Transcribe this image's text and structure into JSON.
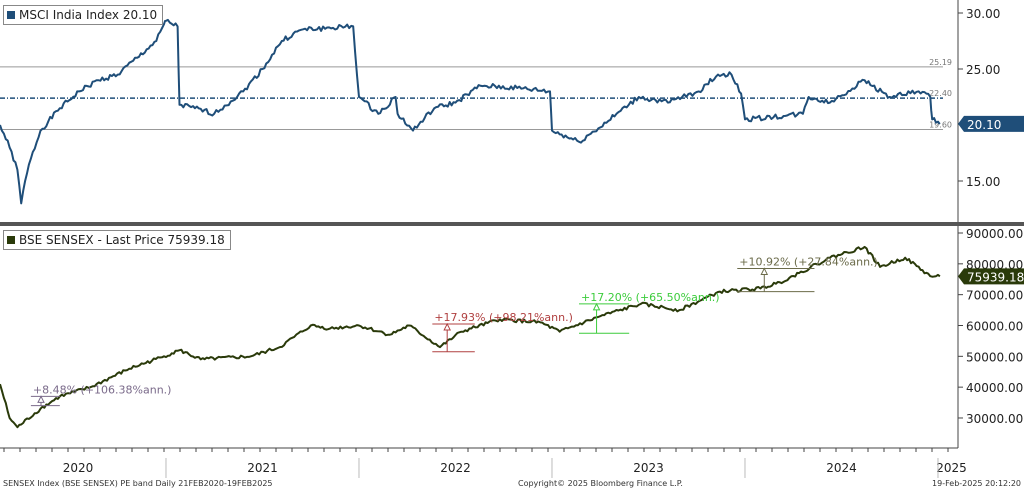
{
  "chart_data": [
    {
      "type": "line",
      "title": "MSCI India Index 20.10",
      "legend": "MSCI India Index 20.10",
      "last_value_label": "20.10",
      "color": "#1f4e79",
      "yticks": [
        "30.00",
        "25.00",
        "15.00"
      ],
      "ytick_values": [
        30,
        25,
        15
      ],
      "ylim": [
        11,
        31
      ],
      "bands": [
        {
          "label": "25.19",
          "value": 25.19
        },
        {
          "label": "22.40",
          "value": 22.4,
          "dashed": true
        },
        {
          "label": "19.60",
          "value": 19.6
        }
      ],
      "x": [
        2020.14,
        2020.19,
        2020.23,
        2020.25,
        2020.27,
        2020.3,
        2020.35,
        2020.45,
        2020.55,
        2020.65,
        2020.75,
        2020.85,
        2020.95,
        2020.99,
        2021.0,
        2021.06,
        2021.07,
        2021.15,
        2021.25,
        2021.4,
        2021.5,
        2021.6,
        2021.7,
        2021.97,
        2022.0,
        2022.1,
        2022.19,
        2022.2,
        2022.28,
        2022.39,
        2022.5,
        2022.63,
        2022.82,
        2022.99,
        2023.0,
        2023.14,
        2023.24,
        2023.45,
        2023.6,
        2023.76,
        2023.86,
        2023.93,
        2023.98,
        2024.0,
        2024.2,
        2024.3,
        2024.33,
        2024.44,
        2024.62,
        2024.75,
        2024.9,
        2024.96,
        2024.97,
        2025.0,
        2025.01
      ],
      "y": [
        20,
        18,
        16,
        13,
        15,
        17,
        19.5,
        21.5,
        23,
        24,
        24.5,
        26,
        27.5,
        29,
        29.3,
        28.8,
        21.8,
        21.5,
        21,
        23,
        25,
        27.5,
        28.5,
        28.8,
        22.5,
        21,
        22.5,
        21,
        19.5,
        21.5,
        22,
        23.5,
        23.3,
        23,
        19.5,
        18.5,
        19.7,
        22.5,
        22,
        23,
        24.5,
        24.5,
        22.8,
        20.5,
        20.8,
        21,
        22.5,
        22,
        24,
        22.5,
        23,
        22.5,
        20.5,
        20.3,
        20.1
      ]
    },
    {
      "type": "line",
      "title": "BSE SENSEX - Last Price 75939.18",
      "legend": "BSE SENSEX - Last Price 75939.18",
      "last_value_label": "75939.18",
      "color": "#2a3a0a",
      "yticks": [
        "90000.00",
        "80000.00",
        "70000.00",
        "60000.00",
        "50000.00",
        "40000.00",
        "30000.00"
      ],
      "ytick_values": [
        90000,
        80000,
        70000,
        60000,
        50000,
        40000,
        30000
      ],
      "ylim": [
        20000,
        92000
      ],
      "x": [
        2020.14,
        2020.19,
        2020.23,
        2020.35,
        2020.45,
        2020.61,
        2020.81,
        2020.99,
        2021.07,
        2021.18,
        2021.44,
        2021.59,
        2021.75,
        2021.85,
        2022.0,
        2022.16,
        2022.26,
        2022.42,
        2022.53,
        2022.73,
        2022.94,
        2023.04,
        2023.25,
        2023.46,
        2023.66,
        2023.87,
        2024.08,
        2024.18,
        2024.28,
        2024.44,
        2024.62,
        2024.7,
        2024.83,
        2024.96,
        2025.01
      ],
      "y": [
        41000,
        30000,
        27000,
        33000,
        37000,
        40000,
        46000,
        50000,
        52000,
        49000,
        50000,
        53000,
        60000,
        59000,
        60000,
        57000,
        60000,
        53000,
        58000,
        62000,
        61000,
        58000,
        63000,
        67000,
        65000,
        71000,
        72000,
        74000,
        77000,
        82000,
        85500,
        79000,
        82000,
        76000,
        75939.18
      ],
      "annotations": [
        {
          "label": "+8.48% (+106.38%ann.)",
          "x0": 2020.3,
          "x1": 2020.45,
          "y_from": 34000,
          "y_to": 37000,
          "color": "#7a6a8a"
        },
        {
          "label": "+17.93% (+98.21%ann.)",
          "x0": 2022.38,
          "x1": 2022.6,
          "y_from": 51500,
          "y_to": 60500,
          "color": "#b04040"
        },
        {
          "label": "+17.20% (+65.50%ann.)",
          "x0": 2023.14,
          "x1": 2023.4,
          "y_from": 57500,
          "y_to": 67000,
          "color": "#3ccc3c"
        },
        {
          "label": "+10.92% (+27.84%ann.)",
          "x0": 2023.96,
          "x1": 2024.36,
          "y_from": 71000,
          "y_to": 78500,
          "color": "#6b6b4a"
        }
      ]
    }
  ],
  "xaxis": {
    "years": [
      "2020",
      "2021",
      "2022",
      "2023",
      "2024",
      "2025"
    ]
  },
  "footer": {
    "left": "SENSEX Index (BSE SENSEX) PE band  Daily 21FEB2020-19FEB2025",
    "center": "Copyright© 2025 Bloomberg Finance L.P.",
    "right": "19-Feb-2025 20:12:20"
  }
}
